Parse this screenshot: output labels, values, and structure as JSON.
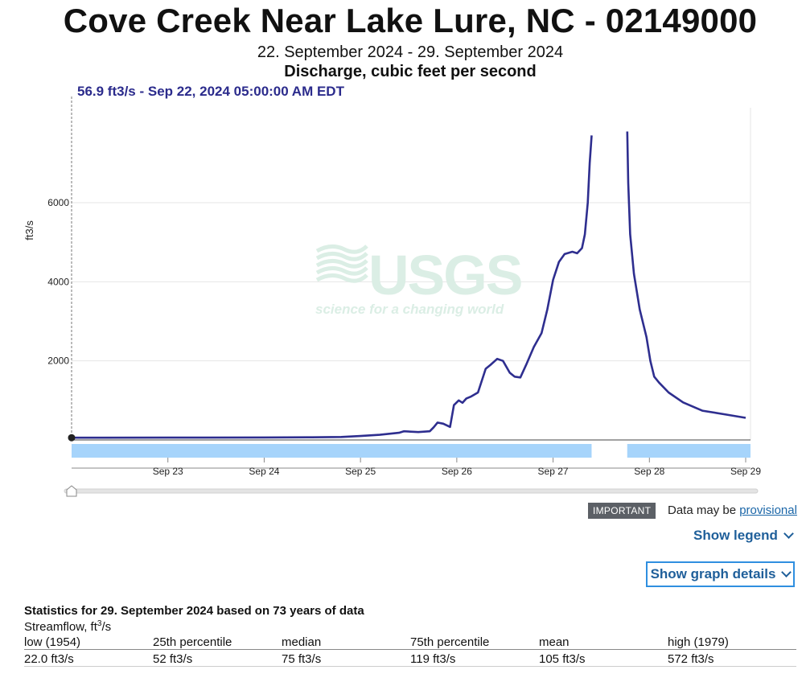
{
  "header": {
    "title": "Cove Creek Near Lake Lure, NC - 02149000",
    "date_range": "22. September 2024 - 29. September 2024",
    "parameter": "Discharge, cubic feet per second",
    "readout": "56.9 ft3/s - Sep 22, 2024 05:00:00 AM EDT"
  },
  "chart_data": {
    "type": "line",
    "ylabel": "ft3/s",
    "y_ticks": [
      2000,
      4000,
      6000
    ],
    "ylim": [
      0,
      8400
    ],
    "x_tick_labels": [
      "Sep 23",
      "Sep 24",
      "Sep 25",
      "Sep 26",
      "Sep 27",
      "Sep 28",
      "Sep 29"
    ],
    "x_tick_days": [
      1,
      2,
      3,
      4,
      5,
      6,
      7
    ],
    "xlim_days": [
      0,
      7.05
    ],
    "grid": true,
    "line_color": "#2e2e8f",
    "watermark": {
      "logo": "USGS",
      "tagline": "science for a changing world"
    },
    "series": [
      {
        "segments": [
          [
            [
              0,
              57
            ],
            [
              1,
              60
            ],
            [
              2,
              63
            ],
            [
              2.5,
              68
            ],
            [
              2.8,
              75
            ],
            [
              3.0,
              100
            ],
            [
              3.2,
              130
            ],
            [
              3.4,
              180
            ],
            [
              3.45,
              220
            ],
            [
              3.6,
              200
            ],
            [
              3.72,
              220
            ],
            [
              3.76,
              320
            ],
            [
              3.8,
              440
            ],
            [
              3.86,
              410
            ],
            [
              3.93,
              330
            ],
            [
              3.97,
              880
            ],
            [
              4.02,
              1000
            ],
            [
              4.06,
              940
            ],
            [
              4.1,
              1050
            ],
            [
              4.15,
              1100
            ],
            [
              4.22,
              1200
            ],
            [
              4.3,
              1800
            ],
            [
              4.35,
              1900
            ],
            [
              4.42,
              2050
            ],
            [
              4.48,
              2000
            ],
            [
              4.55,
              1700
            ],
            [
              4.6,
              1600
            ],
            [
              4.66,
              1580
            ],
            [
              4.72,
              1900
            ],
            [
              4.8,
              2350
            ],
            [
              4.88,
              2700
            ],
            [
              4.94,
              3300
            ],
            [
              5.0,
              4050
            ],
            [
              5.06,
              4500
            ],
            [
              5.12,
              4700
            ],
            [
              5.2,
              4760
            ],
            [
              5.25,
              4720
            ],
            [
              5.3,
              4850
            ],
            [
              5.33,
              5200
            ],
            [
              5.36,
              6000
            ],
            [
              5.38,
              7000
            ],
            [
              5.4,
              7700
            ]
          ],
          [
            [
              5.77,
              7800
            ],
            [
              5.78,
              6500
            ],
            [
              5.8,
              5200
            ],
            [
              5.84,
              4200
            ],
            [
              5.9,
              3300
            ],
            [
              5.97,
              2600
            ],
            [
              6.01,
              2000
            ],
            [
              6.05,
              1600
            ],
            [
              6.1,
              1450
            ],
            [
              6.2,
              1200
            ],
            [
              6.35,
              950
            ],
            [
              6.55,
              740
            ],
            [
              6.8,
              640
            ],
            [
              7.0,
              560
            ]
          ]
        ]
      }
    ],
    "data_availability": [
      [
        0,
        5.4
      ],
      [
        5.77,
        7.05
      ]
    ],
    "availability_color": "#a6d4fb",
    "cursor_day": 0,
    "cursor_value": 56.9
  },
  "notice": {
    "badge": "IMPORTANT",
    "text": "Data may be",
    "link": "provisional"
  },
  "controls": {
    "show_legend": "Show legend",
    "show_graph_details": "Show graph details"
  },
  "statistics": {
    "title": "Statistics for 29. September 2024 based on 73 years of data",
    "unit_label": "Streamflow, ft",
    "unit_sup": "3",
    "unit_suffix": "/s",
    "columns": [
      "low (1954)",
      "25th percentile",
      "median",
      "75th percentile",
      "mean",
      "high (1979)"
    ],
    "values": [
      "22.0 ft3/s",
      "52 ft3/s",
      "75 ft3/s",
      "119 ft3/s",
      "105 ft3/s",
      "572 ft3/s"
    ]
  }
}
